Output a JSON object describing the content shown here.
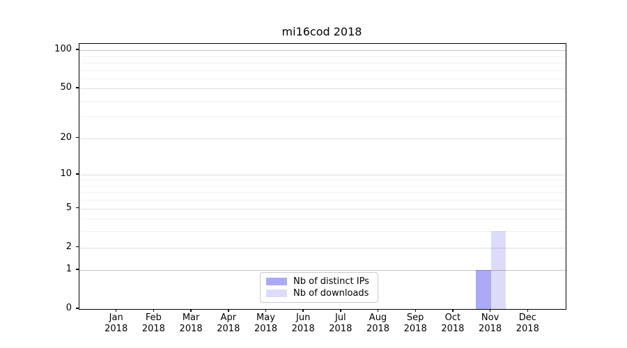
{
  "figure": {
    "title": "mi16cod 2018"
  },
  "legend": {
    "items": [
      {
        "label": "Nb of distinct IPs",
        "color": "#aaaaf8"
      },
      {
        "label": "Nb of downloads",
        "color": "#dcdcf8"
      }
    ]
  },
  "chart_data": {
    "type": "bar",
    "title": "mi16cod 2018",
    "categories": [
      "Jan 2018",
      "Feb 2018",
      "Mar 2018",
      "Apr 2018",
      "May 2018",
      "Jun 2018",
      "Jul 2018",
      "Aug 2018",
      "Sep 2018",
      "Oct 2018",
      "Nov 2018",
      "Dec 2018"
    ],
    "series": [
      {
        "name": "Nb of distinct IPs",
        "color": "#aaaaf8",
        "values": [
          0,
          0,
          0,
          0,
          0,
          0,
          0,
          0,
          0,
          0,
          1,
          0
        ]
      },
      {
        "name": "Nb of downloads",
        "color": "#dcdcf8",
        "values": [
          0,
          0,
          0,
          0,
          0,
          0,
          0,
          0,
          0,
          0,
          3,
          0
        ]
      }
    ],
    "xlabel": "",
    "ylabel": "",
    "y_scale": "log1p",
    "ylim": [
      0,
      112
    ],
    "xlim": [
      0,
      13
    ],
    "y_ticks": [
      0,
      1,
      2,
      5,
      10,
      20,
      50,
      100
    ],
    "y_minor_ticks": [
      3,
      4,
      6,
      7,
      8,
      9,
      30,
      40,
      60,
      70,
      80,
      90
    ],
    "bar_width": 0.4,
    "grid": "horizontal, drawn above bars",
    "legend_position": "lower center"
  }
}
